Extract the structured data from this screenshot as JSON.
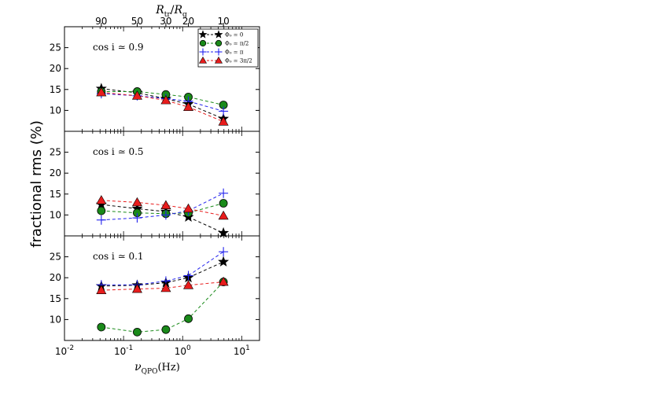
{
  "chart_data": {
    "type": "line",
    "ylabel": "fractional rms (%)",
    "xlabel": "ν_QPO (Hz)",
    "xlabel_main": "ν",
    "xlabel_sub": "QPO",
    "xlabel_unit": "(Hz)",
    "x_scale": "log",
    "xlim": [
      0.01,
      20
    ],
    "x_ticks": [
      {
        "value": 0.01,
        "base": "10",
        "exp": "-2"
      },
      {
        "value": 0.1,
        "base": "10",
        "exp": "-1"
      },
      {
        "value": 1,
        "base": "10",
        "exp": "0"
      },
      {
        "value": 10,
        "base": "10",
        "exp": "1"
      }
    ],
    "top_axis": {
      "label": "R_tr/R_g",
      "label_main_1": "R",
      "label_sub_1": "tr",
      "label_slash": "/",
      "label_main_2": "R",
      "label_sub_2": "g",
      "ticks": [
        {
          "label": "90",
          "x": 0.042
        },
        {
          "label": "50",
          "x": 0.17
        },
        {
          "label": "30",
          "x": 0.52
        },
        {
          "label": "20",
          "x": 1.25
        },
        {
          "label": "10",
          "x": 4.9
        }
      ]
    },
    "x": [
      0.042,
      0.17,
      0.52,
      1.25,
      4.9
    ],
    "legend": {
      "location": "top-right",
      "entries": [
        {
          "label": "Φ₀ ≃ 0",
          "marker": "star",
          "color": "#000000"
        },
        {
          "label": "Φ₀ ≃ π/2",
          "marker": "circle",
          "color": "#1a8a1a"
        },
        {
          "label": "Φ₀ ≃ π",
          "marker": "plus",
          "color": "#2222ee"
        },
        {
          "label": "Φ₀ ≃ 3π/2",
          "marker": "triangle",
          "color": "#e81c1c"
        }
      ]
    },
    "panels": [
      {
        "annotation": "cos i ≃ 0.9",
        "ylim": [
          5,
          30
        ],
        "yticks": [
          10,
          15,
          20,
          25
        ],
        "series": [
          {
            "name": "Φ₀ ≃ 0",
            "values": [
              15.2,
              14.2,
              12.8,
              11.5,
              8.0
            ]
          },
          {
            "name": "Φ₀ ≃ π/2",
            "values": [
              14.5,
              14.5,
              13.8,
              13.2,
              11.3
            ]
          },
          {
            "name": "Φ₀ ≃ π",
            "values": [
              14.0,
              13.5,
              12.8,
              12.2,
              9.8
            ]
          },
          {
            "name": "Φ₀ ≃ 3π/2",
            "values": [
              14.3,
              13.5,
              12.4,
              10.8,
              7.3
            ]
          }
        ]
      },
      {
        "annotation": "cos i ≃ 0.5",
        "ylim": [
          5,
          30
        ],
        "yticks": [
          10,
          15,
          20,
          25
        ],
        "series": [
          {
            "name": "Φ₀ ≃ 0",
            "values": [
              12.5,
              11.5,
              10.8,
              9.5,
              5.7
            ]
          },
          {
            "name": "Φ₀ ≃ π/2",
            "values": [
              11.0,
              10.5,
              10.3,
              10.5,
              12.8
            ]
          },
          {
            "name": "Φ₀ ≃ π",
            "values": [
              8.8,
              9.3,
              10.0,
              11.0,
              15.2
            ]
          },
          {
            "name": "Φ₀ ≃ 3π/2",
            "values": [
              13.5,
              13.0,
              12.3,
              11.5,
              9.8
            ]
          }
        ]
      },
      {
        "annotation": "cos i ≃ 0.1",
        "ylim": [
          5,
          30
        ],
        "yticks": [
          10,
          15,
          20,
          25
        ],
        "series": [
          {
            "name": "Φ₀ ≃ 0",
            "values": [
              18.0,
              18.2,
              18.8,
              20.0,
              23.8
            ]
          },
          {
            "name": "Φ₀ ≃ π/2",
            "values": [
              8.2,
              7.0,
              7.6,
              10.2,
              19.0
            ]
          },
          {
            "name": "Φ₀ ≃ π",
            "values": [
              18.3,
              18.3,
              19.2,
              20.5,
              26.2
            ]
          },
          {
            "name": "Φ₀ ≃ 3π/2",
            "values": [
              17.0,
              17.3,
              17.5,
              18.2,
              19.0
            ]
          }
        ]
      }
    ]
  }
}
